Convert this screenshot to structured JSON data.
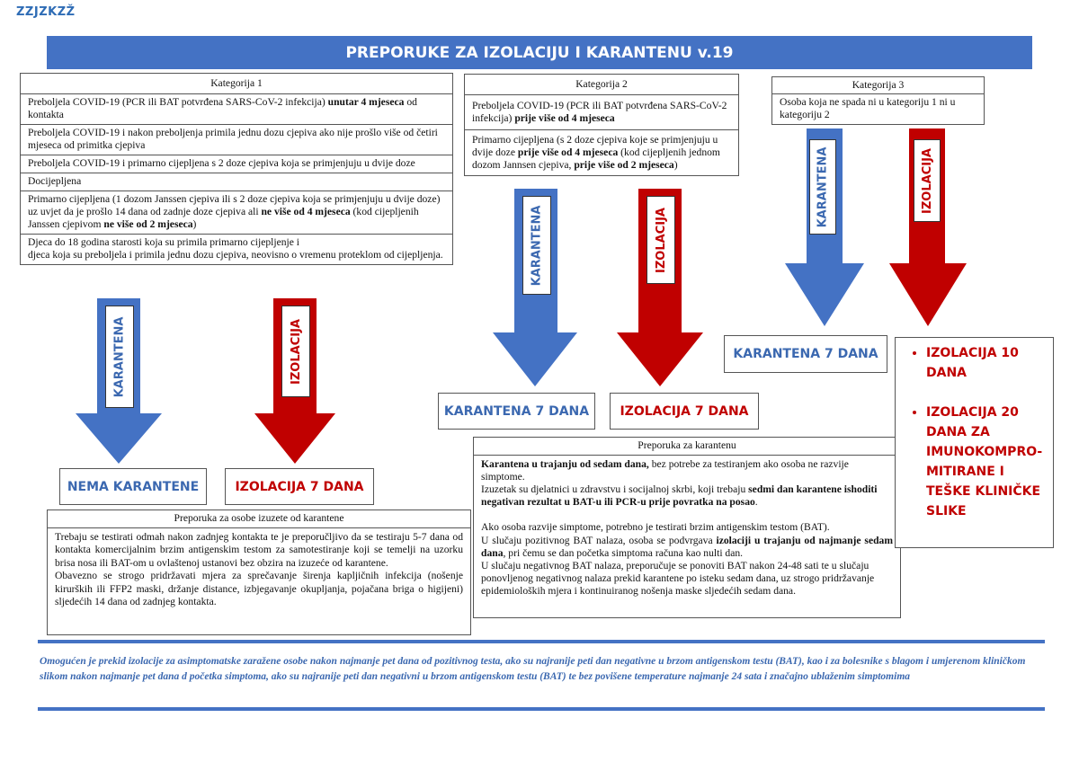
{
  "logo": "ZZJZKZŽ",
  "title": "PREPORUKE ZA IZOLACIJU I KARANTENU v.19",
  "colors": {
    "blue": "#4472c4",
    "red": "#c00000"
  },
  "category1": {
    "header": "Kategorija 1",
    "rows": [
      {
        "text": "Preboljela COVID-19 (PCR ili BAT potvrđena SARS-CoV-2 infekcija) ",
        "bold": "unutar 4 mjeseca",
        "after": " od kontakta"
      },
      {
        "text": "Preboljela COVID-19 i nakon preboljenja primila jednu dozu cjepiva ako nije prošlo više od četiri mjeseca od primitka cjepiva"
      },
      {
        "text": "Preboljela COVID-19 i primarno cijepljena s 2 doze cjepiva koja se primjenjuju u dvije doze"
      },
      {
        "text": "Docijepljena"
      },
      {
        "text": "Primarno cijepljena (1 dozom Janssen cjepiva ili s 2 doze cjepiva koja se primjenjuju u dvije doze) uz uvjet da je prošlo 14 dana od zadnje doze cjepiva ali ",
        "bold": "ne više od 4 mjeseca",
        "after": " (kod cijepljenih Janssen cjepivom ",
        "bold2": "ne više od 2 mjeseca",
        "after2": ")"
      },
      {
        "text": "Djeca do 18 godina starosti koja su primila primarno cijepljenje i",
        "line2": "djeca koja su preboljela i primila jednu dozu cjepiva, neovisno o vremenu proteklom od cijepljenja."
      }
    ],
    "arrow_quarantine": "KARANTENA",
    "arrow_isolation": "IZOLACIJA",
    "result_quarantine": "NEMA KARANTENE",
    "result_isolation": "IZOLACIJA 7 DANA"
  },
  "exempt_note": {
    "header": "Preporuka za osobe izuzete od karantene",
    "p1": "Trebaju se testirati odmah nakon zadnjeg kontakta te je preporučljivo da se testiraju 5-7 dana od kontakta komercijalnim brzim antigenskim testom za samotestiranje koji se temelji na uzorku brisa nosa ili BAT-om u ovlaštenoj ustanovi bez obzira na izuzeće od karantene.",
    "p2": "Obavezno se strogo pridržavati mjera za sprečavanje širenja kapljičnih infekcija (nošenje kirurških ili FFP2 maski, držanje distance, izbjegavanje okupljanja, pojačana briga o higijeni) sljedećih 14 dana od zadnjeg kontakta."
  },
  "category2": {
    "header": "Kategorija 2",
    "rows": [
      {
        "text": "Preboljela COVID-19 (PCR ili BAT potvrđena SARS-CoV-2 infekcija) ",
        "bold": "prije više od 4 mjeseca"
      },
      {
        "text": "Primarno cijepljena (s 2 doze cjepiva koje se primjenjuju u dvije doze ",
        "bold": "prije više od 4 mjeseca",
        "after": " (kod cijepljenih jednom dozom Jannsen cjepiva, ",
        "bold2": "prije više od 2 mjeseca",
        "after2": ")"
      }
    ],
    "arrow_quarantine": "KARANTENA",
    "arrow_isolation": "IZOLACIJA",
    "result_quarantine": "KARANTENA 7 DANA",
    "result_isolation": "IZOLACIJA 7 DANA"
  },
  "quarantine_note": {
    "header": "Preporuka za karantenu",
    "b1": "Karantena u  trajanju od sedam dana,",
    "t1": " bez potrebe za testiranjem ako osoba ne razvije simptome.",
    "t2": "Izuzetak su djelatnici u zdravstvu i socijalnoj skrbi, koji trebaju ",
    "b2": "sedmi dan karantene ishoditi negativan rezultat u BAT-u ili PCR-u prije povratka na posao",
    "t2end": ".",
    "t3": "Ako osoba razvije simptome, potrebno je testirati brzim antigenskim testom (BAT).",
    "t4": "U slučaju pozitivnog BAT nalaza, osoba se podvrgava ",
    "b4": "izolaciji u trajanju od najmanje sedam dana",
    "t4end": ", pri čemu se dan početka simptoma računa kao nulti dan.",
    "t5": "U slučaju negativnog BAT nalaza, preporučuje se ponoviti BAT nakon 24-48 sati te u slučaju ponovljenog negativnog nalaza prekid karantene po isteku sedam dana, uz strogo pridržavanje epidemioloških mjera i kontinuiranog nošenja maske sljedećih sedam dana."
  },
  "category3": {
    "header": "Kategorija 3",
    "rows": [
      {
        "text": "Osoba koja ne spada ni u kategoriju 1 ni u kategoriju 2"
      }
    ],
    "arrow_quarantine": "KARANTENA",
    "arrow_isolation": "IZOLACIJA",
    "result_quarantine": "KARANTENA 7 DANA",
    "result_isolation_items": [
      "IZOLACIJA 10 DANA",
      "IZOLACIJA 20 DANA ZA IMUNOKOMPRO-MITIRANE I TEŠKE KLINIČKE SLIKE"
    ]
  },
  "footer": "Omogućen je prekid izolacije za asimptomatske zaražene osobe nakon najmanje pet dana od pozitivnog testa, ako su najranije peti dan negativne u brzom antigenskom testu (BAT), kao i za bolesnike s blagom i umjerenom kliničkom slikom nakon najmanje pet dana d početka simptoma, ako su najranije peti dan negativni u brzom antigenskom testu (BAT) te bez povišene temperature najmanje 24 sata i značajno ublaženim simptomima"
}
